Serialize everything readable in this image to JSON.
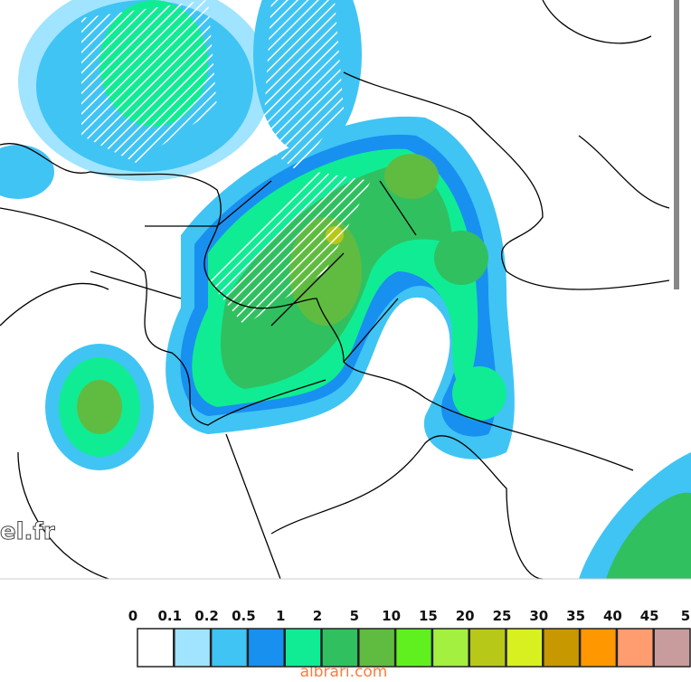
{
  "map": {
    "watermark": "el.fr",
    "footer": "albrari.com"
  },
  "legend": {
    "labels": [
      "0",
      "0.1",
      "0.2",
      "0.5",
      "1",
      "2",
      "5",
      "10",
      "15",
      "20",
      "25",
      "30",
      "35",
      "40",
      "45",
      "5"
    ],
    "colors": [
      "#ffffff",
      "#a0e4ff",
      "#40c4f4",
      "#1890f0",
      "#10ec94",
      "#30c060",
      "#60bc40",
      "#60f020",
      "#a4f040",
      "#b8c818",
      "#d8f020",
      "#c89800",
      "#ff9800",
      "#ff9c70",
      "#c89c9c"
    ]
  }
}
